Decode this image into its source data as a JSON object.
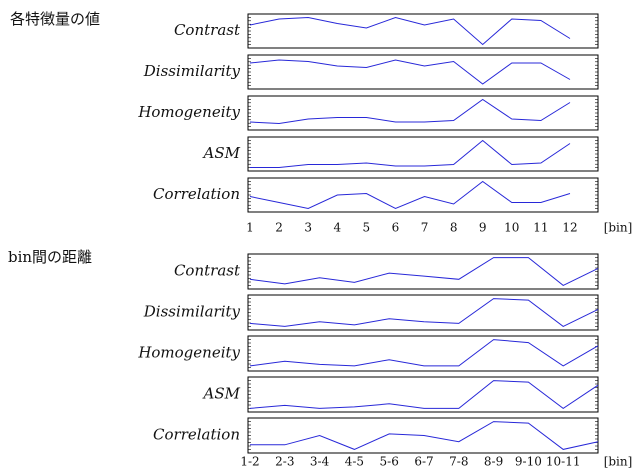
{
  "chart_data": [
    {
      "type": "line",
      "title": "各特徴量の値",
      "x_label": "[bin]",
      "color": "#2828d8",
      "ylim": [
        0,
        1
      ],
      "categories": [
        "1",
        "2",
        "3",
        "4",
        "5",
        "6",
        "7",
        "8",
        "9",
        "10",
        "11",
        "12"
      ],
      "series": [
        {
          "name": "Contrast",
          "values": [
            0.7,
            0.9,
            0.95,
            0.75,
            0.6,
            0.95,
            0.7,
            0.9,
            0.05,
            0.9,
            0.85,
            0.25
          ]
        },
        {
          "name": "Dissimilarity",
          "values": [
            0.8,
            0.9,
            0.85,
            0.7,
            0.65,
            0.9,
            0.7,
            0.85,
            0.1,
            0.8,
            0.8,
            0.25
          ]
        },
        {
          "name": "Homogeneity",
          "values": [
            0.2,
            0.15,
            0.3,
            0.35,
            0.35,
            0.2,
            0.2,
            0.25,
            0.95,
            0.3,
            0.25,
            0.85
          ]
        },
        {
          "name": "ASM",
          "values": [
            0.05,
            0.05,
            0.15,
            0.15,
            0.2,
            0.1,
            0.1,
            0.15,
            0.95,
            0.15,
            0.2,
            0.85
          ]
        },
        {
          "name": "Correlation",
          "values": [
            0.45,
            0.25,
            0.05,
            0.5,
            0.55,
            0.05,
            0.45,
            0.2,
            0.95,
            0.25,
            0.25,
            0.55
          ]
        }
      ]
    },
    {
      "type": "line",
      "title": "bin間の距離",
      "x_label": "[bin]",
      "color": "#2828d8",
      "ylim": [
        0,
        1
      ],
      "categories": [
        "1-2",
        "2-3",
        "3-4",
        "4-5",
        "5-6",
        "6-7",
        "7-8",
        "8-9",
        "9-10",
        "10-11",
        null
      ],
      "series": [
        {
          "name": "Contrast",
          "values": [
            0.25,
            0.1,
            0.3,
            0.15,
            0.45,
            0.35,
            0.25,
            0.95,
            0.95,
            0.05,
            0.6
          ]
        },
        {
          "name": "Dissimilarity",
          "values": [
            0.15,
            0.05,
            0.2,
            0.1,
            0.3,
            0.2,
            0.15,
            0.95,
            0.9,
            0.05,
            0.6
          ]
        },
        {
          "name": "Homogeneity",
          "values": [
            0.1,
            0.25,
            0.15,
            0.1,
            0.3,
            0.1,
            0.1,
            0.95,
            0.85,
            0.1,
            0.75
          ]
        },
        {
          "name": "ASM",
          "values": [
            0.05,
            0.15,
            0.05,
            0.1,
            0.2,
            0.05,
            0.05,
            0.95,
            0.9,
            0.05,
            0.8
          ]
        },
        {
          "name": "Correlation",
          "values": [
            0.2,
            0.2,
            0.5,
            0.05,
            0.55,
            0.5,
            0.3,
            0.95,
            0.9,
            0.05,
            0.3
          ]
        }
      ]
    }
  ]
}
